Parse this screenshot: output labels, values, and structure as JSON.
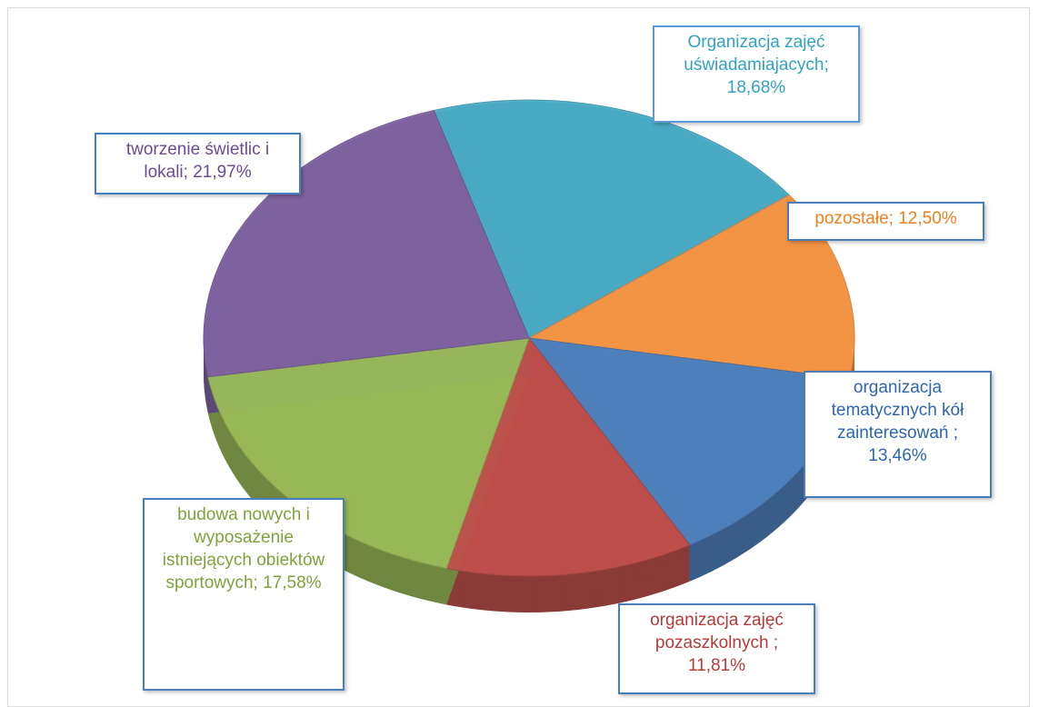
{
  "chart_data": {
    "type": "pie3d",
    "values": [
      18.68,
      12.5,
      13.46,
      11.81,
      17.58,
      21.97
    ],
    "value_labels": [
      "Organizacja zajęć uświadamiajacych; 18,68%",
      "pozostałe; 12,50%",
      "organizacja tematycznych kół zainteresowań ; 13,46%",
      "organizacja zajęć pozaszkolnych ; 11,81%",
      "budowa nowych i wyposażenie istniejących obiektów sportowych; 17,58%",
      "tworzenie świetlic i lokali; 21,97%"
    ],
    "colors": [
      "#4bacc6",
      "#f79646",
      "#4f81bd",
      "#c0504d",
      "#9bbb59",
      "#8064a2"
    ]
  }
}
